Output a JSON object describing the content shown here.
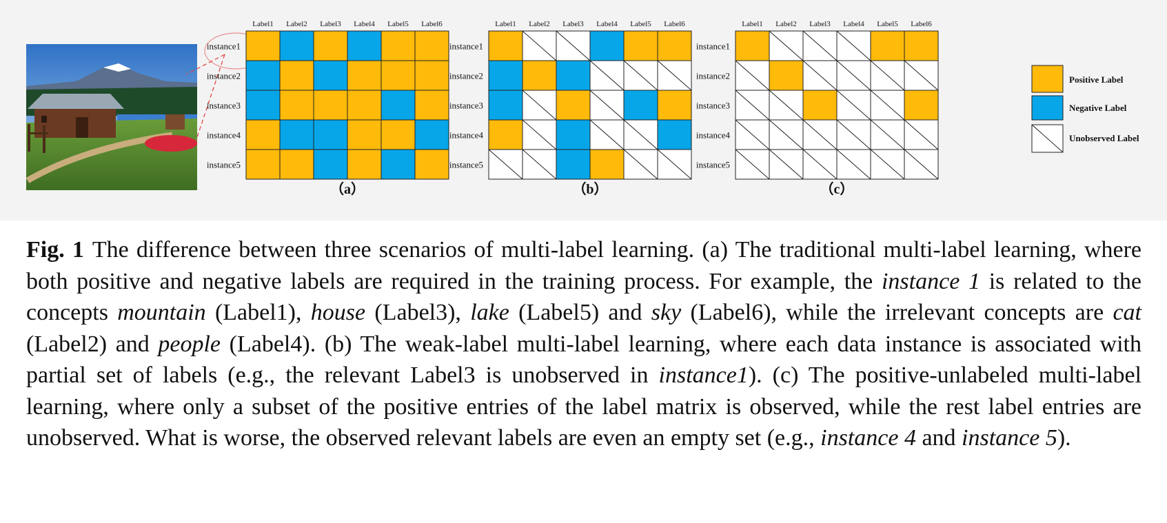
{
  "labels": [
    "Label1",
    "Label2",
    "Label3",
    "Label4",
    "Label5",
    "Label6"
  ],
  "instances": [
    "instance1",
    "instance2",
    "instance3",
    "instance4",
    "instance5"
  ],
  "colors": {
    "positive": "#FFBA0A",
    "negative": "#07A6E9",
    "unobserved": "#ffffff",
    "grid": "#222222",
    "callout": "#e23b3b"
  },
  "panels": [
    {
      "id": "a",
      "letter": "（a）",
      "matrix": [
        [
          "P",
          "N",
          "P",
          "N",
          "P",
          "P"
        ],
        [
          "N",
          "P",
          "N",
          "P",
          "P",
          "P"
        ],
        [
          "N",
          "P",
          "P",
          "P",
          "N",
          "P"
        ],
        [
          "P",
          "N",
          "N",
          "P",
          "P",
          "N"
        ],
        [
          "P",
          "P",
          "N",
          "P",
          "N",
          "P"
        ]
      ]
    },
    {
      "id": "b",
      "letter": "（b）",
      "matrix": [
        [
          "P",
          "U",
          "U",
          "N",
          "P",
          "P"
        ],
        [
          "N",
          "P",
          "N",
          "U",
          "U",
          "U"
        ],
        [
          "N",
          "U",
          "P",
          "U",
          "N",
          "P"
        ],
        [
          "P",
          "U",
          "N",
          "U",
          "U",
          "N"
        ],
        [
          "U",
          "U",
          "N",
          "P",
          "U",
          "U"
        ]
      ]
    },
    {
      "id": "c",
      "letter": "（c）",
      "matrix": [
        [
          "P",
          "U",
          "U",
          "U",
          "P",
          "P"
        ],
        [
          "U",
          "P",
          "U",
          "U",
          "U",
          "U"
        ],
        [
          "U",
          "U",
          "P",
          "U",
          "U",
          "P"
        ],
        [
          "U",
          "U",
          "U",
          "U",
          "U",
          "U"
        ],
        [
          "U",
          "U",
          "U",
          "U",
          "U",
          "U"
        ]
      ]
    }
  ],
  "legend": {
    "positive": "Positive Label",
    "negative": "Negative Label",
    "unobserved": "Unobserved Label"
  },
  "caption": {
    "fig_num": "Fig. 1",
    "segments": [
      {
        "t": "The difference between three scenarios of multi-label learning. (a) The traditional multi-label learning, where both positive and negative labels are required in the training process. For example, the ",
        "i": false
      },
      {
        "t": "instance 1",
        "i": true
      },
      {
        "t": " is related to the concepts ",
        "i": false
      },
      {
        "t": "mountain",
        "i": true
      },
      {
        "t": " (Label1), ",
        "i": false
      },
      {
        "t": "house",
        "i": true
      },
      {
        "t": " (Label3), ",
        "i": false
      },
      {
        "t": "lake",
        "i": true
      },
      {
        "t": " (Label5) and ",
        "i": false
      },
      {
        "t": "sky",
        "i": true
      },
      {
        "t": " (Label6), while the irrelevant concepts are ",
        "i": false
      },
      {
        "t": "cat",
        "i": true
      },
      {
        "t": " (Label2) and ",
        "i": false
      },
      {
        "t": "people",
        "i": true
      },
      {
        "t": " (Label4). (b) The weak-label multi-label learning, where each data instance is associated with partial set of labels (e.g., the relevant Label3 is unobserved in ",
        "i": false
      },
      {
        "t": "instance1",
        "i": true
      },
      {
        "t": "). (c) The positive-unlabeled multi-label learning, where only a subset of the positive entries of the label matrix is observed, while the rest label entries are unobserved. What is worse, the observed relevant labels are even an empty set (e.g., ",
        "i": false
      },
      {
        "t": "instance 4",
        "i": true
      },
      {
        "t": " and ",
        "i": false
      },
      {
        "t": "instance 5",
        "i": true
      },
      {
        "t": ").",
        "i": false
      }
    ]
  }
}
